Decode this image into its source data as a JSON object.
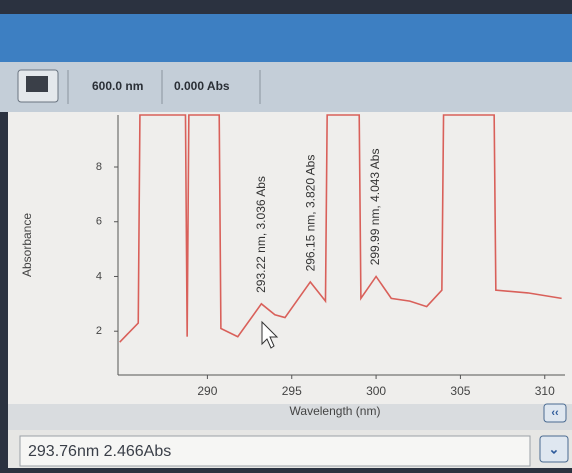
{
  "toolbar": {
    "wavelength": "600.0 nm",
    "absorbance": "0.000 Abs"
  },
  "chart_data": {
    "type": "line",
    "x_label": "Wavelength (nm)",
    "y_label": "Absorbance",
    "x": [
      284.8,
      285.9,
      286.0,
      288.7,
      288.8,
      288.9,
      290.7,
      290.8,
      291.8,
      293.2,
      294.0,
      294.6,
      296.1,
      297.0,
      297.1,
      299.0,
      299.1,
      300.0,
      300.9,
      302.0,
      303.0,
      303.9,
      304.0,
      307.0,
      307.1,
      309.0,
      311.0
    ],
    "series": [
      {
        "color": "#d9605a",
        "values": [
          1.6,
          2.3,
          9.9,
          9.9,
          1.8,
          9.9,
          9.9,
          2.1,
          1.8,
          3.0,
          2.6,
          2.5,
          3.8,
          3.1,
          9.9,
          9.9,
          3.2,
          4.0,
          3.2,
          3.1,
          2.9,
          3.5,
          9.9,
          9.9,
          3.5,
          3.4,
          3.2
        ]
      }
    ],
    "xlim": [
      284.7,
      311.2
    ],
    "ylim": [
      0.4,
      9.9
    ],
    "xticks": [
      290,
      295,
      300,
      305,
      310
    ],
    "yticks": [
      2,
      4,
      6,
      8
    ],
    "annotations": [
      {
        "text": "293.22 nm, 3.036 Abs",
        "x": 293.22,
        "y": 3.036
      },
      {
        "text": "296.15 nm, 3.820 Abs",
        "x": 296.15,
        "y": 3.82
      },
      {
        "text": "299.99 nm, 4.043 Abs",
        "x": 299.99,
        "y": 4.043
      }
    ]
  },
  "status": "293.76nm 2.466Abs"
}
